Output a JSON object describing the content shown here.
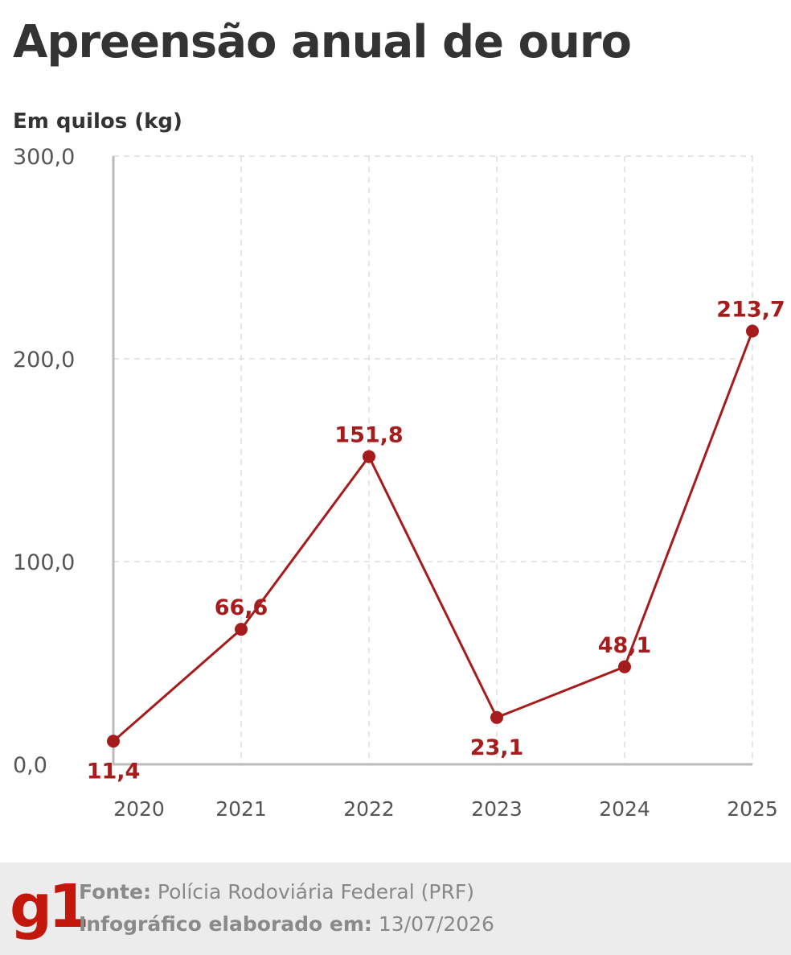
{
  "header": {
    "title": "Apreensão anual de ouro"
  },
  "chart_data": {
    "type": "line",
    "title": "Apreensão anual de ouro",
    "ylabel": "Em quilos (kg)",
    "xlabel": "",
    "categories": [
      "2020",
      "2021",
      "2022",
      "2023",
      "2024",
      "2025"
    ],
    "series": [
      {
        "values": [
          11.4,
          66.6,
          151.8,
          23.1,
          48.1,
          213.7
        ],
        "labels": [
          "11,4",
          "66,6",
          "151,8",
          "23,1",
          "48,1",
          "213,7"
        ],
        "label_positions": [
          "below",
          "above",
          "above",
          "below",
          "above",
          "above"
        ]
      }
    ],
    "ylim": [
      0,
      300
    ],
    "yticks": [
      0,
      100,
      200,
      300
    ],
    "ytick_labels": [
      "0,0",
      "100,0",
      "200,0",
      "300,0"
    ],
    "grid": true,
    "line_color": "#a61c1c",
    "grid_color": "#dddddd",
    "axis_color": "#bbbbbb"
  },
  "footer": {
    "logo": "g1",
    "source_label": "Fonte:",
    "source_value": "Polícia Rodoviária Federal (PRF)",
    "date_label": "Infográfico elaborado em:",
    "date_value": "13/07/2026"
  }
}
